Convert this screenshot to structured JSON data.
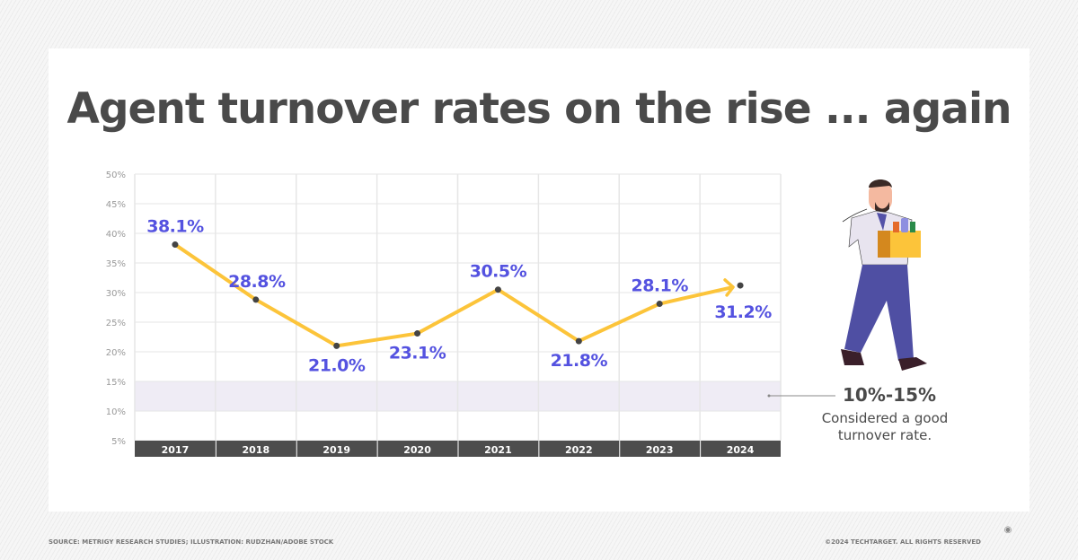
{
  "title": "Agent turnover rates on the rise ... again",
  "chart_data": {
    "type": "line",
    "title": "Agent turnover rates on the rise ... again",
    "categories": [
      "2017",
      "2018",
      "2019",
      "2020",
      "2021",
      "2022",
      "2023",
      "2024"
    ],
    "values": [
      38.1,
      28.8,
      21.0,
      23.1,
      30.5,
      21.8,
      28.1,
      31.2
    ],
    "data_labels": [
      "38.1%",
      "28.8%",
      "21.0%",
      "23.1%",
      "30.5%",
      "21.8%",
      "28.1%",
      "31.2%"
    ],
    "y_ticks": [
      "5%",
      "10%",
      "15%",
      "20%",
      "25%",
      "30%",
      "35%",
      "40%",
      "45%",
      "50%"
    ],
    "ylim": [
      5,
      50
    ],
    "grid": true,
    "highlight_band": [
      10,
      15
    ],
    "line_color": "#fcc43a",
    "label_color": "#5452e0",
    "band_color": "#efecf5"
  },
  "annotation": {
    "value": "10%-15%",
    "text_line1": "Considered a good",
    "text_line2": "turnover rate."
  },
  "footer": {
    "source": "SOURCE: METRIGY RESEARCH STUDIES; ILLUSTRATION: RUDZHAN/ADOBE STOCK",
    "copyright": "©2024 TECHTARGET. ALL RIGHTS RESERVED",
    "logo": "TechTarget"
  }
}
